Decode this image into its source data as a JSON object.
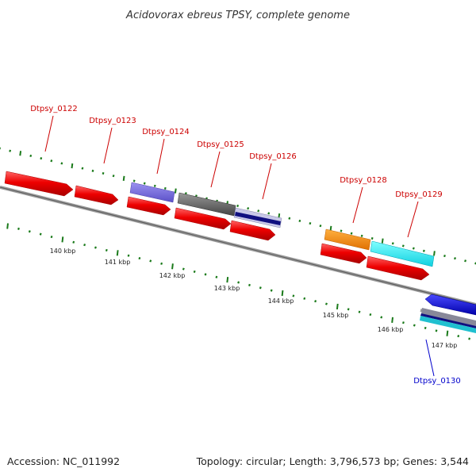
{
  "title": "Acidovorax ebreus TPSY, complete genome",
  "footer": {
    "accession": "Accession: NC_011992",
    "summary": "Topology: circular; Length: 3,796,573 bp; Genes: 3,544"
  },
  "colors": {
    "forward_label": "#cc0000",
    "reverse_label": "#0000cc",
    "tick": "#1a7a1a",
    "backbone": "#888888"
  },
  "gene_labels": [
    {
      "id": "Dtpsy_0122",
      "strand": "forward"
    },
    {
      "id": "Dtpsy_0123",
      "strand": "forward"
    },
    {
      "id": "Dtpsy_0124",
      "strand": "forward"
    },
    {
      "id": "Dtpsy_0125",
      "strand": "forward"
    },
    {
      "id": "Dtpsy_0126",
      "strand": "forward"
    },
    {
      "id": "Dtpsy_0128",
      "strand": "forward"
    },
    {
      "id": "Dtpsy_0129",
      "strand": "forward"
    },
    {
      "id": "Dtpsy_0130",
      "strand": "reverse"
    }
  ],
  "kbp_labels": [
    "140 kbp",
    "141 kbp",
    "142 kbp",
    "143 kbp",
    "144 kbp",
    "145 kbp",
    "146 kbp",
    "147 kbp"
  ]
}
